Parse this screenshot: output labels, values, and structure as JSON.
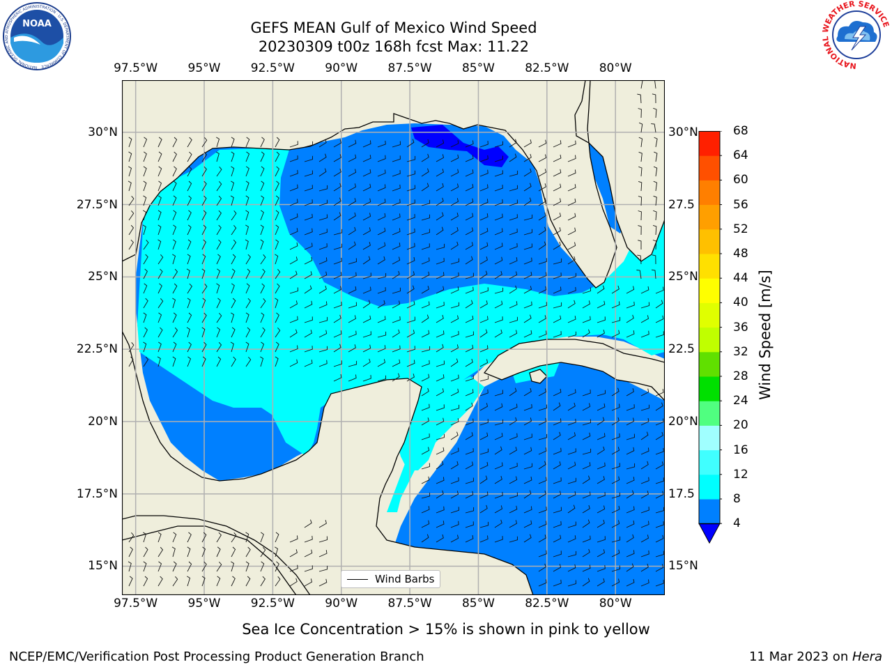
{
  "title": {
    "line1": "GEFS MEAN Gulf of Mexico Wind Speed",
    "line2": "20230309 t00z 168h fcst   Max: 11.22"
  },
  "lon_ticks": [
    {
      "lon": -97.5,
      "label": "97.5°W"
    },
    {
      "lon": -95.0,
      "label": "95°W"
    },
    {
      "lon": -92.5,
      "label": "92.5°W"
    },
    {
      "lon": -90.0,
      "label": "90°W"
    },
    {
      "lon": -87.5,
      "label": "87.5°W"
    },
    {
      "lon": -85.0,
      "label": "85°W"
    },
    {
      "lon": -82.5,
      "label": "82.5°W"
    },
    {
      "lon": -80.0,
      "label": "80°W"
    }
  ],
  "lat_ticks_left": [
    {
      "lat": 30.0,
      "label": "30°N"
    },
    {
      "lat": 27.5,
      "label": "27.5°N"
    },
    {
      "lat": 25.0,
      "label": "25°N"
    },
    {
      "lat": 22.5,
      "label": "22.5°N"
    },
    {
      "lat": 20.0,
      "label": "20°N"
    },
    {
      "lat": 17.5,
      "label": "17.5°N"
    },
    {
      "lat": 15.0,
      "label": "15°N"
    }
  ],
  "lat_ticks_right": [
    {
      "lat": 30.0,
      "label": "30°N"
    },
    {
      "lat": 27.5,
      "label": "27.5"
    },
    {
      "lat": 25.0,
      "label": "25°N"
    },
    {
      "lat": 22.5,
      "label": "22.5"
    },
    {
      "lat": 20.0,
      "label": "20°N"
    },
    {
      "lat": 17.5,
      "label": "17.5"
    },
    {
      "lat": 15.0,
      "label": "15°N"
    }
  ],
  "map_extent": {
    "lon_min": -98.0,
    "lon_max": -78.2,
    "lat_min": 14.0,
    "lat_max": 31.8
  },
  "colors": {
    "land": "#efeedc",
    "wind_4_8": "#0080ff",
    "wind_8_12": "#00ffff",
    "wind_lt_4": "#0000ff",
    "grid": "#b0b0b0"
  },
  "colorbar": {
    "title": "Wind Speed [m/s]",
    "labels": [
      "4",
      "8",
      "12",
      "16",
      "20",
      "24",
      "28",
      "32",
      "36",
      "40",
      "44",
      "48",
      "52",
      "56",
      "60",
      "64",
      "68"
    ],
    "colors": [
      "#0080ff",
      "#00ffff",
      "#40ffff",
      "#a0ffff",
      "#50ff80",
      "#00e000",
      "#60e000",
      "#c0ff00",
      "#e0ff00",
      "#ffff00",
      "#ffe000",
      "#ffc000",
      "#ff9f00",
      "#ff7f00",
      "#ff5000",
      "#ff2000"
    ],
    "under_color": "#0000ff"
  },
  "legend": {
    "label": "Wind Barbs"
  },
  "caption": "Sea Ice Concentration > 15% is shown in pink to yellow",
  "footer_left": "NCEP/EMC/Verification Post Processing Product Generation Branch",
  "footer_right_date": "11 Mar 2023 on ",
  "footer_right_host": "Hera",
  "logos": {
    "left": {
      "name": "noaa-logo",
      "text": "NOAA",
      "ring_text": "NATIONAL OCEANIC AND ATMOSPHERIC ADMINISTRATION · U.S. DEPARTMENT OF COMMERCE"
    },
    "right": {
      "name": "nws-logo",
      "ring_text": "NATIONAL WEATHER SERVICE"
    }
  }
}
